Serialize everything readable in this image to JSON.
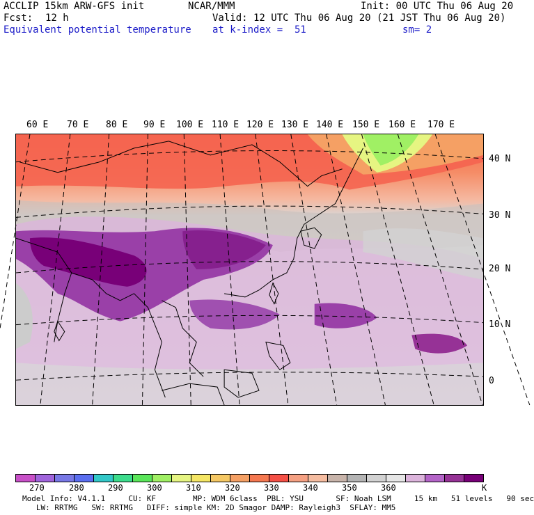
{
  "header": {
    "model": "ACCLIP 15km ARW-GFS init",
    "center": "NCAR/MMM",
    "init": "Init: 00 UTC Thu 06 Aug 20",
    "fcst_label": "Fcst:",
    "fcst_value": "12 h",
    "valid": "Valid: 12 UTC Thu 06 Aug 20 (21 JST Thu 06 Aug 20)",
    "field": "Equivalent potential temperature",
    "level": "at k-index =  51",
    "smoothing": "sm= 2"
  },
  "map": {
    "lon_labels": [
      "60 E",
      "70 E",
      "80 E",
      "90 E",
      "100 E",
      "110 E",
      "120 E",
      "130 E",
      "140 E",
      "150 E",
      "160 E",
      "170 E"
    ],
    "lat_labels": [
      "40 N",
      "30 N",
      "20 N",
      "10 N",
      "0"
    ]
  },
  "colorbar": {
    "colors": [
      "#c850c8",
      "#a064dc",
      "#7878e6",
      "#5a6ef0",
      "#32c8c8",
      "#3cdc8c",
      "#5ae65a",
      "#a0f064",
      "#e6f582",
      "#f5e664",
      "#f5c864",
      "#f5a064",
      "#f57850",
      "#f55046",
      "#f5a082",
      "#f5bca0",
      "#c8b4aa",
      "#b4b4b4",
      "#d2d2d2",
      "#e6e6e6",
      "#dcb4dc",
      "#b464c8",
      "#963296",
      "#780078"
    ],
    "labels": [
      "270",
      "280",
      "290",
      "300",
      "310",
      "320",
      "330",
      "340",
      "350",
      "360"
    ],
    "unit": "K"
  },
  "footer": {
    "line1": "Model Info: V4.1.1     CU: KF        MP: WDM 6class  PBL: YSU       SF: Noah LSM     15 km   51 levels   90 sec",
    "line2": "   LW: RRTMG   SW: RRTMG   DIFF: simple KM: 2D Smagor DAMP: Rayleigh3  SFLAY: MM5"
  }
}
